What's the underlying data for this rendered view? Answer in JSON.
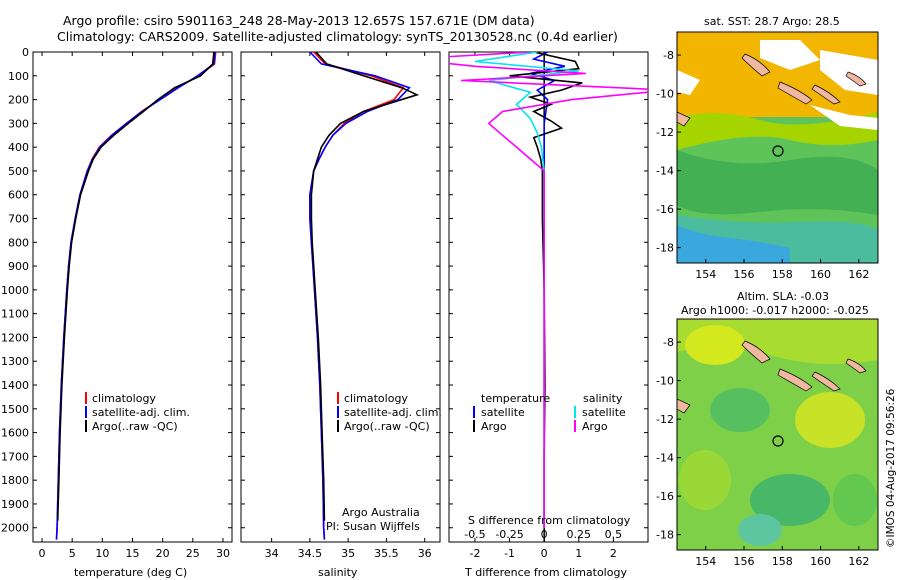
{
  "title_line1": "Argo profile: csiro 5901163_248 28-May-2013 12.657S 157.671E (DM data)",
  "title_line2": "Climatology: CARS2009. Satellite-adjusted climatology: synTS_20130528.nc (0.4d earlier)",
  "colors": {
    "climatology": "#ff0000",
    "satellite": "#0000ff",
    "argo": "#000000",
    "salinity_sat": "#00e5ee",
    "salinity_argo": "#ff00ff"
  },
  "depth_axis": {
    "ticks": [
      0,
      100,
      200,
      300,
      400,
      500,
      600,
      700,
      800,
      900,
      1000,
      1100,
      1200,
      1300,
      1400,
      1500,
      1600,
      1700,
      1800,
      1900,
      2000
    ],
    "range": [
      0,
      2060
    ]
  },
  "legend": {
    "climatology": "climatology",
    "satellite": "satellite-adj. clim.",
    "argo": "Argo(..raw -QC)"
  },
  "credit": {
    "line1": "Argo Australia",
    "line2": "PI: Susan Wijffels"
  },
  "diff_legend": {
    "temp_header": "temperature",
    "sal_header": "salinity",
    "satellite": "satellite",
    "argo": "Argo"
  },
  "map_sst": {
    "title": "sat. SST: 28.7 Argo: 28.5",
    "xticks": [
      "154",
      "156",
      "158",
      "160",
      "162"
    ],
    "yticks": [
      "-8",
      "-10",
      "-12",
      "-14",
      "-16",
      "-18"
    ]
  },
  "map_sla": {
    "title1": "Altim. SLA: -0.03",
    "title2": "Argo h1000: -0.017 h2000: -0.025",
    "xticks": [
      "154",
      "156",
      "158",
      "160",
      "162"
    ],
    "yticks": [
      "-8",
      "-10",
      "-12",
      "-14",
      "-16",
      "-18"
    ]
  },
  "stamp": "©IMOS 04-Aug-2017 09:56:26",
  "chart_data": [
    {
      "type": "line",
      "name": "temperature",
      "xlabel": "temperature (deg C)",
      "xlim": [
        -1.5,
        31.5
      ],
      "xticks": [
        0,
        5,
        10,
        15,
        20,
        25,
        30
      ],
      "series": [
        {
          "name": "climatology",
          "depth": [
            0,
            50,
            100,
            150,
            200,
            250,
            300,
            350,
            400,
            450,
            500,
            600,
            700,
            800,
            900,
            1000,
            1200,
            1400,
            1600,
            1800,
            2000,
            2050
          ],
          "values": [
            28.8,
            28.6,
            26.0,
            22.5,
            19.5,
            16.5,
            14.0,
            11.5,
            9.5,
            8.3,
            7.5,
            6.3,
            5.5,
            4.8,
            4.4,
            4.1,
            3.6,
            3.2,
            2.9,
            2.7,
            2.5,
            2.4
          ]
        },
        {
          "name": "satellite",
          "depth": [
            0,
            50,
            100,
            150,
            200,
            250,
            300,
            350,
            400,
            450,
            500,
            600,
            700,
            800,
            900,
            1000,
            1200,
            1400,
            1600,
            1800,
            2000,
            2050
          ],
          "values": [
            28.7,
            28.5,
            25.8,
            22.6,
            19.6,
            16.6,
            14.0,
            11.6,
            9.6,
            8.4,
            7.5,
            6.3,
            5.5,
            4.8,
            4.4,
            4.1,
            3.6,
            3.2,
            2.9,
            2.7,
            2.5,
            2.4
          ]
        },
        {
          "name": "argo",
          "depth": [
            0,
            50,
            100,
            150,
            200,
            250,
            300,
            350,
            400,
            450,
            500,
            600,
            700,
            800,
            900,
            1000,
            1200,
            1400,
            1600,
            1800,
            1970
          ],
          "values": [
            28.5,
            28.3,
            26.3,
            22.0,
            19.2,
            16.8,
            14.3,
            11.9,
            9.8,
            8.5,
            7.7,
            6.4,
            5.6,
            4.9,
            4.5,
            4.2,
            3.7,
            3.3,
            3.0,
            2.8,
            2.6
          ]
        }
      ]
    },
    {
      "type": "line",
      "name": "salinity",
      "xlabel": "salinity",
      "xlim": [
        33.6,
        36.2
      ],
      "xticks": [
        34,
        34.5,
        35,
        35.5,
        36
      ],
      "series": [
        {
          "name": "climatology",
          "depth": [
            0,
            50,
            100,
            150,
            200,
            250,
            300,
            350,
            400,
            450,
            500,
            600,
            700,
            800,
            1000,
            1200,
            1400,
            1600,
            1800,
            2000,
            2050
          ],
          "values": [
            34.55,
            34.7,
            35.3,
            35.72,
            35.6,
            35.2,
            34.95,
            34.8,
            34.7,
            34.62,
            34.55,
            34.5,
            34.5,
            34.52,
            34.56,
            34.6,
            34.63,
            34.65,
            34.67,
            34.68,
            34.69
          ]
        },
        {
          "name": "satellite",
          "depth": [
            0,
            50,
            100,
            150,
            200,
            250,
            300,
            350,
            400,
            450,
            500,
            600,
            700,
            800,
            1000,
            1200,
            1400,
            1600,
            1800,
            2000,
            2050
          ],
          "values": [
            34.5,
            34.65,
            35.35,
            35.8,
            35.65,
            35.25,
            34.97,
            34.8,
            34.7,
            34.62,
            34.55,
            34.5,
            34.5,
            34.52,
            34.56,
            34.6,
            34.63,
            34.65,
            34.67,
            34.68,
            34.69
          ]
        },
        {
          "name": "argo",
          "depth": [
            0,
            50,
            100,
            150,
            180,
            220,
            250,
            300,
            350,
            400,
            450,
            500,
            600,
            700,
            800,
            1000,
            1200,
            1400,
            1600,
            1800,
            1970
          ],
          "values": [
            34.58,
            34.72,
            35.2,
            35.7,
            35.9,
            35.5,
            35.2,
            34.9,
            34.75,
            34.65,
            34.6,
            34.55,
            34.52,
            34.52,
            34.53,
            34.57,
            34.61,
            34.64,
            34.66,
            34.68,
            34.69
          ]
        }
      ]
    },
    {
      "type": "line",
      "name": "differences",
      "xlabel": "T difference from climatology",
      "xlabel_top": "S difference from climatology",
      "xlim": [
        -2.75,
        3.0
      ],
      "xticks": [
        -2,
        -1,
        0,
        1,
        2
      ],
      "sticks": [
        "-0.5",
        "-0.25",
        "0",
        "0.25",
        "0.5"
      ],
      "series": [
        {
          "name": "temperature satellite",
          "depth": [
            0,
            30,
            60,
            90,
            120,
            160,
            200,
            250,
            300,
            350,
            400,
            500,
            700,
            1000,
            1400,
            2000
          ],
          "values": [
            0.1,
            -0.3,
            0.6,
            -0.4,
            0.3,
            -0.2,
            0.1,
            0.05,
            0.0,
            0.0,
            0.0,
            0.0,
            0.0,
            0.0,
            0.0,
            0.0
          ]
        },
        {
          "name": "temperature argo",
          "depth": [
            0,
            40,
            70,
            100,
            130,
            160,
            190,
            220,
            250,
            290,
            320,
            360,
            400,
            450,
            500,
            700,
            1000,
            1400,
            1700,
            2000
          ],
          "values": [
            -0.3,
            0.9,
            1.0,
            -1.0,
            1.1,
            0.5,
            -0.4,
            0.2,
            -0.3,
            0.2,
            0.5,
            -0.3,
            -0.2,
            -0.1,
            -0.05,
            -0.05,
            0.0,
            0.02,
            0.0,
            0.0
          ]
        },
        {
          "name": "salinity satellite",
          "depth": [
            0,
            40,
            80,
            120,
            170,
            220,
            280,
            340,
            400,
            500,
            700,
            1000,
            1500,
            2000
          ],
          "values": [
            -0.05,
            -0.5,
            0.25,
            -0.4,
            -0.1,
            -0.2,
            -0.1,
            -0.05,
            -0.02,
            0.0,
            0.0,
            0.0,
            0.0,
            0.0
          ]
        },
        {
          "name": "salinity argo",
          "depth": [
            0,
            30,
            60,
            90,
            120,
            160,
            200,
            250,
            300,
            350,
            400,
            450,
            500,
            700,
            1000,
            2000
          ],
          "values": [
            -0.1,
            -1.0,
            -0.5,
            0.3,
            -0.6,
            0.9,
            0.2,
            -0.3,
            -0.4,
            -0.3,
            -0.2,
            -0.1,
            0.0,
            0.0,
            0.0,
            0.0
          ]
        }
      ]
    }
  ]
}
